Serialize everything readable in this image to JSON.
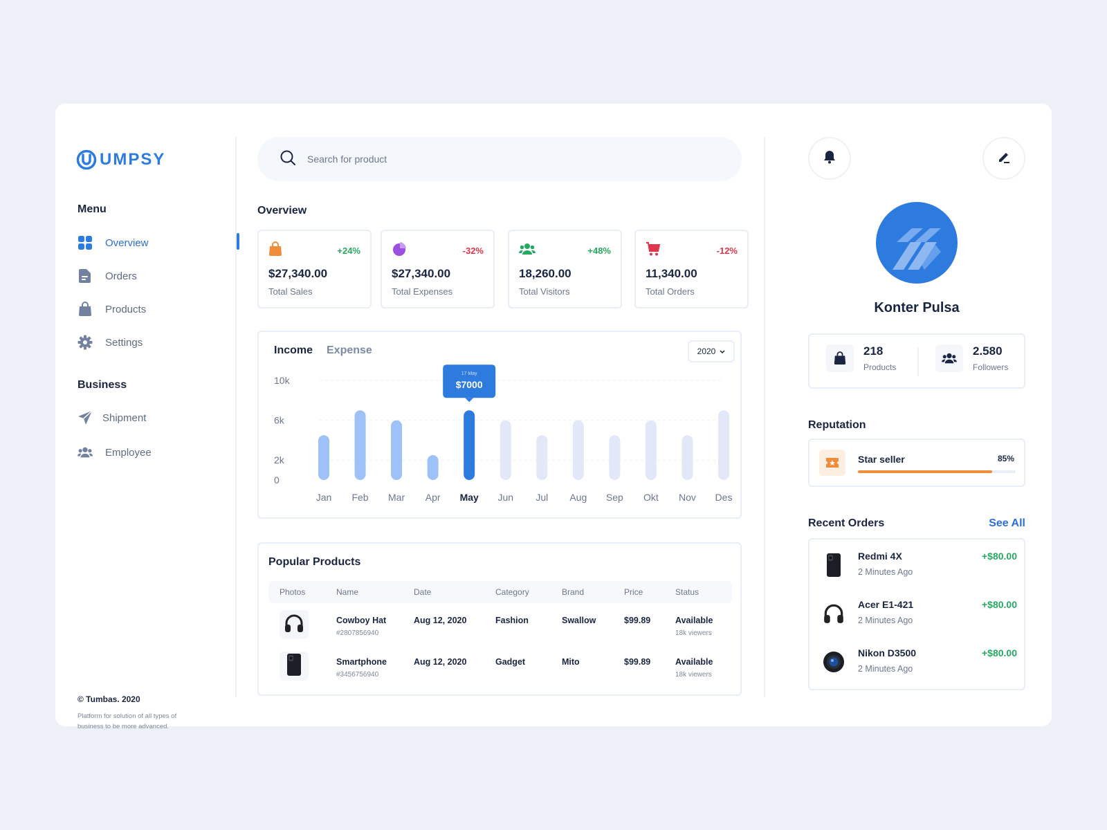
{
  "brand": {
    "logo_text": "UMPSY",
    "accent": "#2e7be0"
  },
  "sidebar": {
    "menu_title": "Menu",
    "menu_items": [
      {
        "label": "Overview",
        "icon": "grid-icon",
        "active": true
      },
      {
        "label": "Orders",
        "icon": "document-icon"
      },
      {
        "label": "Products",
        "icon": "shopping-bag-icon"
      },
      {
        "label": "Settings",
        "icon": "gear-icon"
      }
    ],
    "business_title": "Business",
    "business_items": [
      {
        "label": "Shipment",
        "icon": "paper-plane-icon"
      },
      {
        "label": "Employee",
        "icon": "users-icon"
      }
    ],
    "copyright": "© Tumbas. 2020",
    "tagline": "Platform for solution of all types of business to be more advanced."
  },
  "search": {
    "placeholder": "Search for product"
  },
  "overview": {
    "title": "Overview",
    "stats": [
      {
        "value": "$27,340.00",
        "label": "Total Sales",
        "change": "+24%",
        "trend": "up",
        "icon": "shopping-bag-icon",
        "color": "#f08c3a"
      },
      {
        "value": "$27,340.00",
        "label": "Total Expenses",
        "change": "-32%",
        "trend": "down",
        "icon": "pie-chart-icon",
        "color": "#9b4fe0"
      },
      {
        "value": "18,260.00",
        "label": "Total Visitors",
        "change": "+48%",
        "trend": "up",
        "icon": "users-icon",
        "color": "#27a862"
      },
      {
        "value": "11,340.00",
        "label": "Total Orders",
        "change": "-12%",
        "trend": "down",
        "icon": "cart-icon",
        "color": "#e0344b"
      }
    ]
  },
  "chart": {
    "tabs": [
      "Income",
      "Expense"
    ],
    "year": "2020"
  },
  "chart_data": {
    "type": "bar",
    "categories": [
      "Jan",
      "Feb",
      "Mar",
      "Apr",
      "May",
      "Jun",
      "Jul",
      "Aug",
      "Sep",
      "Okt",
      "Nov",
      "Des"
    ],
    "values": [
      4500,
      7000,
      6000,
      2500,
      7000,
      6000,
      4500,
      6000,
      4500,
      6000,
      4500,
      7000
    ],
    "yticks": [
      "10k",
      "6k",
      "2k",
      "0"
    ],
    "ylim": [
      0,
      10000
    ],
    "highlight_index": 4,
    "tooltip": {
      "date": "17 May",
      "value": "$7000"
    },
    "colors": {
      "past": "#9ec2f7",
      "highlight": "#2e7be0",
      "future": "#e2e8f8"
    }
  },
  "popular_products": {
    "title": "Popular Products",
    "columns": [
      "Photos",
      "Name",
      "Date",
      "Category",
      "Brand",
      "Price",
      "Status"
    ],
    "rows": [
      {
        "photo": "headphones-icon",
        "name": "Cowboy Hat",
        "sku": "#2807856940",
        "date": "Aug 12, 2020",
        "category": "Fashion",
        "brand": "Swallow",
        "price": "$99.89",
        "status": "Available",
        "viewers": "18k viewers"
      },
      {
        "photo": "smartphone-icon",
        "name": "Smartphone",
        "sku": "#3456756940",
        "date": "Aug 12, 2020",
        "category": "Gadget",
        "brand": "Mito",
        "price": "$99.89",
        "status": "Available",
        "viewers": "18k viewers"
      }
    ]
  },
  "profile": {
    "name": "Konter Pulsa",
    "products_count": "218",
    "products_label": "Products",
    "followers_count": "2.580",
    "followers_label": "Followers"
  },
  "reputation": {
    "title": "Reputation",
    "name": "Star seller",
    "percent": "85%",
    "level": 0.85
  },
  "recent_orders": {
    "title": "Recent Orders",
    "see_all": "See All",
    "items": [
      {
        "name": "Redmi 4X",
        "time": "2 Minutes Ago",
        "amount": "+$80.00",
        "icon": "smartphone-icon"
      },
      {
        "name": "Acer E1-421",
        "time": "2 Minutes Ago",
        "amount": "+$80.00",
        "icon": "headphones-icon"
      },
      {
        "name": "Nikon D3500",
        "time": "2 Minutes Ago",
        "amount": "+$80.00",
        "icon": "camera-icon"
      }
    ]
  }
}
